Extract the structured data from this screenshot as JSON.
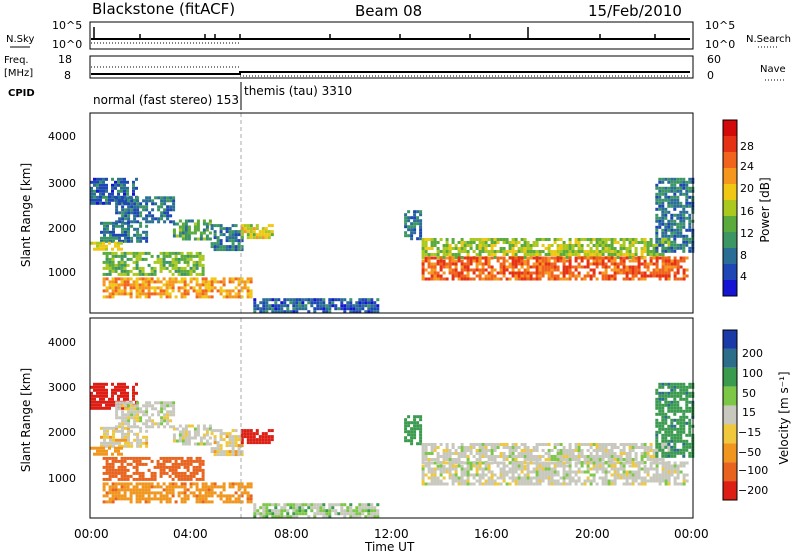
{
  "header": {
    "station": "Blackstone (fitACF)",
    "beam": "Beam 08",
    "date": "15/Feb/2010"
  },
  "noise_panel": {
    "left_label": "N.Sky",
    "right_label": "N.Search",
    "left_ticks": [
      "10^5",
      "10^0"
    ],
    "right_ticks": [
      "10^5",
      "10^0"
    ]
  },
  "freq_panel": {
    "left_label_1": "Freq.",
    "left_label_2": "[MHz]",
    "right_label": "Nave",
    "left_ticks": [
      "18",
      "8"
    ],
    "right_ticks": [
      "60",
      "0"
    ]
  },
  "cpid": {
    "label": "CPID",
    "modes": [
      {
        "name": "normal (fast stereo) 153",
        "start_hour": 0,
        "end_hour": 6
      },
      {
        "name": "themis (tau) 3310",
        "start_hour": 6,
        "end_hour": 24
      }
    ]
  },
  "x_axis": {
    "label": "Time UT",
    "ticks": [
      "00:00",
      "04:00",
      "08:00",
      "12:00",
      "16:00",
      "20:00",
      "00:00"
    ]
  },
  "power_panel": {
    "ylabel": "Slant Range [km]",
    "yticks": [
      "4000",
      "3000",
      "2000",
      "1000"
    ],
    "colorbar_label": "Power [dB]",
    "colorbar_ticks": [
      "28",
      "24",
      "20",
      "16",
      "12",
      "8",
      "4"
    ],
    "colors": [
      "#1414d2",
      "#1e46b4",
      "#2a6e96",
      "#3c9664",
      "#5aaa3c",
      "#aac81e",
      "#f0c814",
      "#f5961e",
      "#f0641e",
      "#e63214",
      "#d20a0a"
    ]
  },
  "velocity_panel": {
    "ylabel": "Slant Range [km]",
    "yticks": [
      "4000",
      "3000",
      "2000",
      "1000"
    ],
    "colorbar_label": "Velocity [m s⁻¹]",
    "colorbar_ticks": [
      "200",
      "100",
      "50",
      "15",
      "−15",
      "−50",
      "−100",
      "−200"
    ],
    "colors": [
      "#1a3aa8",
      "#2c6e8a",
      "#3a9a4e",
      "#7cc846",
      "#c8c8be",
      "#f0c83c",
      "#f0961e",
      "#e8641e",
      "#dc1e14"
    ]
  },
  "chart_data": {
    "type": "heatmap",
    "title": "Blackstone (fitACF) Beam 08 15/Feb/2010",
    "xlabel": "Time UT",
    "ylabel": "Slant Range [km]",
    "xlim_hours": [
      0,
      24
    ],
    "ylim_km": [
      180,
      4500
    ],
    "regions": [
      {
        "t0": 0.0,
        "t1": 1.8,
        "r0": 2550,
        "r1": 3100,
        "power": 6,
        "velocity": -180
      },
      {
        "t0": 0.4,
        "t1": 2.2,
        "r0": 1750,
        "r1": 2150,
        "power": 8,
        "velocity": -15
      },
      {
        "t0": 0.0,
        "t1": 1.2,
        "r0": 1580,
        "r1": 1720,
        "power": 18,
        "velocity": -50
      },
      {
        "t0": 1.0,
        "t1": 3.3,
        "r0": 2150,
        "r1": 2700,
        "power": 7,
        "velocity": 0
      },
      {
        "t0": 3.3,
        "t1": 4.8,
        "r0": 1750,
        "r1": 2200,
        "power": 12,
        "velocity": 0
      },
      {
        "t0": 4.8,
        "t1": 6.0,
        "r0": 1550,
        "r1": 2100,
        "power": 8,
        "velocity": -15
      },
      {
        "t0": 6.0,
        "t1": 7.3,
        "r0": 1800,
        "r1": 2100,
        "power": 18,
        "velocity": -180
      },
      {
        "t0": 0.5,
        "t1": 4.5,
        "r0": 1000,
        "r1": 1500,
        "power": 14,
        "velocity": -100
      },
      {
        "t0": 0.5,
        "t1": 6.4,
        "r0": 500,
        "r1": 950,
        "power": 22,
        "velocity": -60
      },
      {
        "t0": 6.5,
        "t1": 11.5,
        "r0": 200,
        "r1": 500,
        "power": 6,
        "velocity": 15
      },
      {
        "t0": 12.5,
        "t1": 13.2,
        "r0": 1800,
        "r1": 2400,
        "power": 8,
        "velocity": 50
      },
      {
        "t0": 13.2,
        "t1": 23.0,
        "r0": 1400,
        "r1": 1800,
        "power": 16,
        "velocity": 0
      },
      {
        "t0": 13.2,
        "t1": 23.8,
        "r0": 900,
        "r1": 1400,
        "power": 26,
        "velocity": 0
      },
      {
        "t0": 22.5,
        "t1": 24.0,
        "r0": 1500,
        "r1": 3100,
        "power": 8,
        "velocity": 60
      }
    ]
  }
}
